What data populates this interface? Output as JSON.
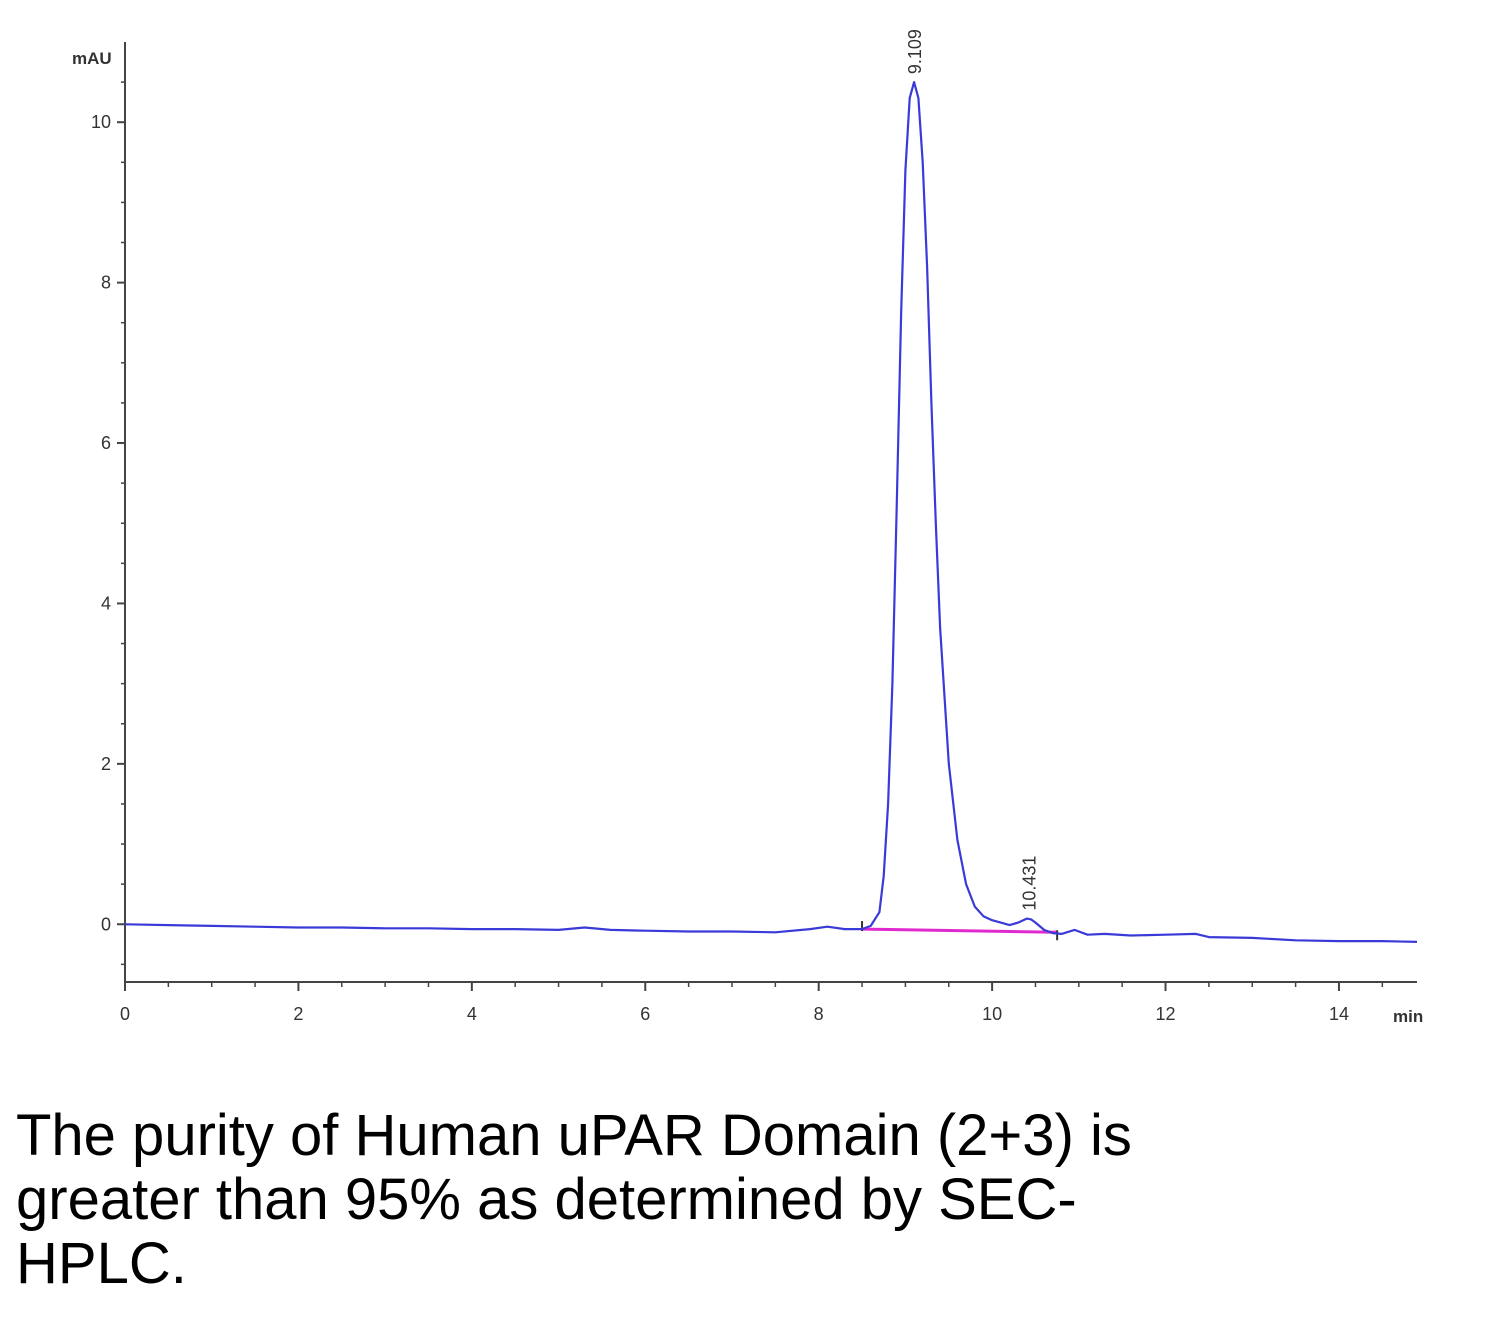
{
  "chart_data": {
    "type": "line",
    "ylabel": "mAU",
    "xlabel": "min",
    "xlim": [
      0,
      14.9
    ],
    "ylim": [
      -0.72,
      11.0
    ],
    "x_ticks": [
      "0",
      "2",
      "4",
      "6",
      "8",
      "10",
      "12",
      "14"
    ],
    "y_ticks": [
      "0",
      "2",
      "4",
      "6",
      "8",
      "10"
    ],
    "x_tick_values": [
      0,
      2,
      4,
      6,
      8,
      10,
      12,
      14
    ],
    "y_tick_values": [
      0,
      2,
      4,
      6,
      8,
      10
    ],
    "series": [
      {
        "color": "#3a3ad8",
        "x": [
          0,
          0.5,
          1,
          1.5,
          2,
          2.5,
          3,
          3.5,
          4,
          4.5,
          5,
          5.3,
          5.6,
          6,
          6.5,
          7,
          7.5,
          7.9,
          8.1,
          8.3,
          8.5,
          8.6,
          8.7,
          8.75,
          8.8,
          8.85,
          8.9,
          8.95,
          9.0,
          9.05,
          9.1,
          9.15,
          9.2,
          9.25,
          9.3,
          9.35,
          9.4,
          9.5,
          9.6,
          9.7,
          9.8,
          9.9,
          10.0,
          10.1,
          10.2,
          10.3,
          10.4,
          10.45,
          10.5,
          10.6,
          10.7,
          10.8,
          10.95,
          11.1,
          11.3,
          11.6,
          12.0,
          12.35,
          12.5,
          13.0,
          13.5,
          14.0,
          14.5,
          14.9
        ],
        "y": [
          0.0,
          -0.01,
          -0.02,
          -0.03,
          -0.04,
          -0.04,
          -0.05,
          -0.05,
          -0.06,
          -0.06,
          -0.07,
          -0.04,
          -0.07,
          -0.08,
          -0.09,
          -0.09,
          -0.1,
          -0.06,
          -0.03,
          -0.06,
          -0.06,
          -0.02,
          0.15,
          0.6,
          1.5,
          3.0,
          5.2,
          7.6,
          9.4,
          10.3,
          10.5,
          10.3,
          9.5,
          8.2,
          6.5,
          5.0,
          3.7,
          2.0,
          1.05,
          0.5,
          0.22,
          0.1,
          0.05,
          0.02,
          -0.01,
          0.02,
          0.07,
          0.06,
          0.02,
          -0.07,
          -0.11,
          -0.12,
          -0.07,
          -0.13,
          -0.12,
          -0.14,
          -0.13,
          -0.12,
          -0.16,
          -0.17,
          -0.2,
          -0.21,
          -0.21,
          -0.22
        ]
      }
    ],
    "baseline": {
      "color": "#e02ad0",
      "x": [
        8.5,
        10.75
      ],
      "y": [
        -0.06,
        -0.1
      ]
    },
    "peaks": [
      {
        "x": 9.109,
        "y": 10.5,
        "label": "9.109"
      },
      {
        "x": 10.431,
        "y": 0.07,
        "label": "10.431"
      }
    ]
  },
  "caption": "The purity of Human uPAR Domain (2+3) is\ngreater than 95% as determined by SEC-\nHPLC."
}
